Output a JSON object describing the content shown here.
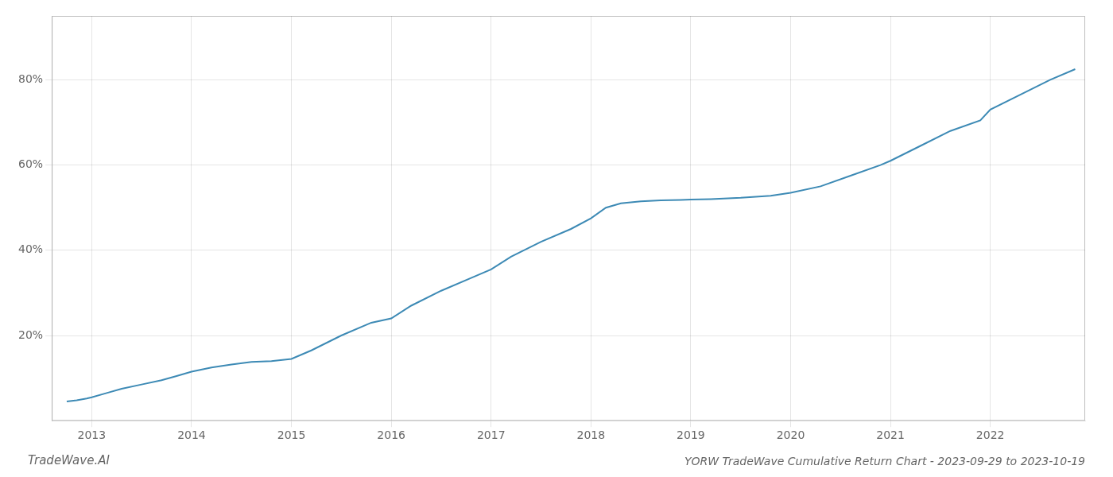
{
  "chart_data": {
    "type": "line",
    "title": "YORW TradeWave Cumulative Return Chart - 2023-09-29 to 2023-10-19",
    "annotations": [
      "TradeWave.AI"
    ],
    "color": "#3d8ab5",
    "x": [
      2012.75,
      2012.85,
      2012.95,
      2013.0,
      2013.15,
      2013.3,
      2013.5,
      2013.7,
      2013.85,
      2014.0,
      2014.2,
      2014.4,
      2014.6,
      2014.8,
      2015.0,
      2015.2,
      2015.5,
      2015.8,
      2016.0,
      2016.2,
      2016.5,
      2016.8,
      2017.0,
      2017.2,
      2017.5,
      2017.8,
      2018.0,
      2018.15,
      2018.3,
      2018.5,
      2018.7,
      2018.9,
      2019.0,
      2019.2,
      2019.5,
      2019.8,
      2020.0,
      2020.3,
      2020.6,
      2020.9,
      2021.0,
      2021.3,
      2021.6,
      2021.9,
      2022.0,
      2022.3,
      2022.6,
      2022.85
    ],
    "values": [
      4.5,
      4.8,
      5.2,
      5.5,
      6.5,
      7.5,
      8.5,
      9.5,
      10.5,
      11.5,
      12.5,
      13.2,
      13.8,
      14.0,
      14.5,
      16.5,
      20.0,
      23.0,
      24.0,
      27.0,
      30.5,
      33.5,
      35.5,
      38.5,
      42.0,
      45.0,
      47.5,
      50.0,
      51.0,
      51.5,
      51.7,
      51.8,
      51.9,
      52.0,
      52.3,
      52.8,
      53.5,
      55.0,
      57.5,
      60.0,
      61.0,
      64.5,
      68.0,
      70.5,
      73.0,
      76.5,
      80.0,
      82.5
    ],
    "xlim": [
      2012.6,
      2022.95
    ],
    "xticks": [
      2013,
      2014,
      2015,
      2016,
      2017,
      2018,
      2019,
      2020,
      2021,
      2022
    ],
    "ylim": [
      0,
      95
    ],
    "yticks": [
      {
        "value": 20,
        "label": "20%"
      },
      {
        "value": 40,
        "label": "40%"
      },
      {
        "value": 60,
        "label": "60%"
      },
      {
        "value": 80,
        "label": "80%"
      }
    ],
    "grid": true
  }
}
